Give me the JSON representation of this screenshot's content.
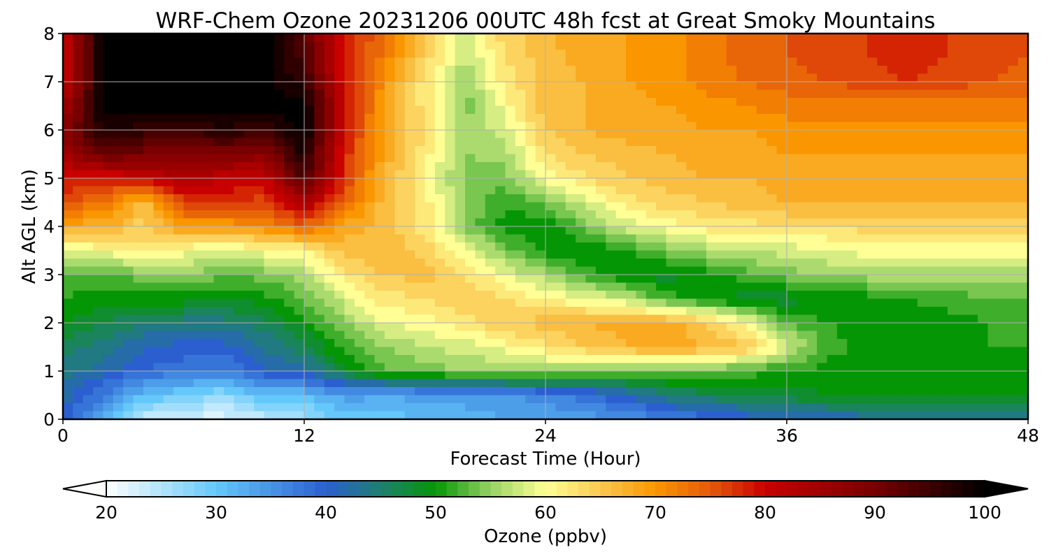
{
  "chart_data": {
    "type": "heatmap",
    "title": "WRF-Chem Ozone  20231206 00UTC 48h fcst at Great Smoky Mountains",
    "xlabel": "Forecast Time (Hour)",
    "ylabel": "Alt AGL (km)",
    "xlim": [
      0,
      48
    ],
    "ylim": [
      0,
      8
    ],
    "xticks": [
      "0",
      "12",
      "24",
      "36",
      "48"
    ],
    "yticks": [
      "0",
      "1",
      "2",
      "3",
      "4",
      "5",
      "6",
      "7",
      "8"
    ],
    "grid": true,
    "x": [
      0,
      2,
      4,
      6,
      8,
      10,
      12,
      14,
      16,
      18,
      20,
      22,
      24,
      26,
      28,
      30,
      32,
      34,
      36,
      38,
      40,
      42,
      44,
      46,
      48
    ],
    "y": [
      0,
      0.5,
      1,
      1.5,
      2,
      2.5,
      3,
      3.5,
      4,
      4.5,
      5,
      5.5,
      6,
      6.5,
      7,
      7.5,
      8
    ],
    "z": [
      [
        40,
        33,
        24,
        22,
        22,
        24,
        26,
        30,
        30,
        31,
        32,
        33,
        33,
        34,
        35,
        37,
        38,
        40,
        41,
        41,
        42,
        42,
        42,
        42,
        42
      ],
      [
        42,
        37,
        31,
        29,
        27,
        31,
        31,
        34,
        33,
        34,
        34,
        35,
        36,
        38,
        41,
        44,
        46,
        47,
        48,
        49,
        49,
        49,
        49,
        49,
        49
      ],
      [
        44,
        42,
        39,
        38,
        37,
        41,
        42,
        48,
        53,
        54,
        55,
        55,
        56,
        54,
        53,
        54,
        54,
        52,
        51,
        50,
        50,
        50,
        50,
        50,
        50
      ],
      [
        46,
        44,
        41,
        40,
        40,
        43,
        46,
        52,
        55,
        57,
        58,
        60,
        62,
        65,
        67,
        68,
        67,
        65,
        58,
        52,
        50,
        50,
        50,
        51,
        51
      ],
      [
        49,
        47,
        45,
        44,
        44,
        46,
        50,
        55,
        59,
        60,
        62,
        65,
        66,
        67,
        68,
        68,
        65,
        60,
        53,
        51,
        50,
        50,
        50,
        51,
        51
      ],
      [
        51,
        50,
        50,
        50,
        49,
        50,
        53,
        58,
        62,
        63,
        65,
        63,
        61,
        59,
        57,
        52,
        50,
        48,
        48,
        49,
        50,
        51,
        52,
        53,
        53
      ],
      [
        53,
        52,
        54,
        55,
        53,
        54,
        56,
        62,
        65,
        66,
        63,
        59,
        56,
        52,
        49,
        48,
        50,
        52,
        54,
        55,
        56,
        56,
        56,
        56,
        56
      ],
      [
        58,
        60,
        62,
        60,
        58,
        60,
        61,
        66,
        67,
        64,
        60,
        54,
        50,
        49,
        51,
        54,
        56,
        57,
        58,
        59,
        60,
        60,
        60,
        60,
        60
      ],
      [
        68,
        68,
        64,
        70,
        69,
        71,
        74,
        68,
        66,
        62,
        54,
        50,
        49,
        54,
        58,
        60,
        62,
        62,
        63,
        63,
        64,
        64,
        64,
        64,
        64
      ],
      [
        75,
        73,
        66,
        76,
        78,
        76,
        84,
        74,
        66,
        62,
        55,
        51,
        54,
        58,
        62,
        64,
        65,
        66,
        67,
        67,
        67,
        67,
        67,
        67,
        67
      ],
      [
        80,
        78,
        80,
        84,
        81,
        80,
        94,
        77,
        67,
        61,
        54,
        54,
        60,
        63,
        65,
        66,
        67,
        67,
        68,
        68,
        68,
        68,
        68,
        68,
        68
      ],
      [
        84,
        92,
        90,
        88,
        90,
        88,
        98,
        78,
        68,
        62,
        55,
        56,
        63,
        65,
        66,
        67,
        68,
        68,
        69,
        69,
        69,
        69,
        69,
        69,
        69
      ],
      [
        88,
        98,
        96,
        95,
        97,
        95,
        100,
        80,
        68,
        63,
        55,
        58,
        65,
        67,
        68,
        68,
        69,
        69,
        70,
        70,
        70,
        70,
        70,
        70,
        70
      ],
      [
        84,
        100,
        100,
        100,
        100,
        100,
        100,
        80,
        69,
        62,
        54,
        60,
        66,
        67,
        68,
        69,
        70,
        71,
        72,
        72,
        72,
        72,
        72,
        72,
        72
      ],
      [
        80,
        100,
        100,
        100,
        100,
        100,
        96,
        79,
        70,
        62,
        55,
        62,
        66,
        67,
        69,
        70,
        72,
        73,
        74,
        75,
        76,
        77,
        76,
        75,
        74
      ],
      [
        80,
        100,
        100,
        100,
        100,
        100,
        94,
        78,
        72,
        64,
        57,
        63,
        66,
        68,
        69,
        70,
        72,
        74,
        75,
        76,
        77,
        78,
        77,
        76,
        75
      ],
      [
        80,
        100,
        100,
        100,
        100,
        100,
        92,
        78,
        74,
        65,
        58,
        64,
        67,
        68,
        69,
        70,
        72,
        74,
        75,
        76,
        77,
        78,
        77,
        76,
        75
      ]
    ],
    "colorbar": {
      "label": "Ozone  (ppbv)",
      "min": 20,
      "max": 100,
      "ticks": [
        "20",
        "30",
        "40",
        "50",
        "60",
        "70",
        "80",
        "90",
        "100"
      ],
      "extend": "both",
      "stops": [
        {
          "v": 20,
          "c": "#ffffff"
        },
        {
          "v": 30,
          "c": "#64c8fa"
        },
        {
          "v": 40,
          "c": "#2b5fd0"
        },
        {
          "v": 45,
          "c": "#1f7f6f"
        },
        {
          "v": 50,
          "c": "#059605"
        },
        {
          "v": 55,
          "c": "#96d264"
        },
        {
          "v": 60,
          "c": "#ffff96"
        },
        {
          "v": 65,
          "c": "#fac850"
        },
        {
          "v": 70,
          "c": "#fa9600"
        },
        {
          "v": 75,
          "c": "#e55a0a"
        },
        {
          "v": 80,
          "c": "#c80000"
        },
        {
          "v": 90,
          "c": "#780000"
        },
        {
          "v": 100,
          "c": "#000000"
        }
      ]
    }
  }
}
